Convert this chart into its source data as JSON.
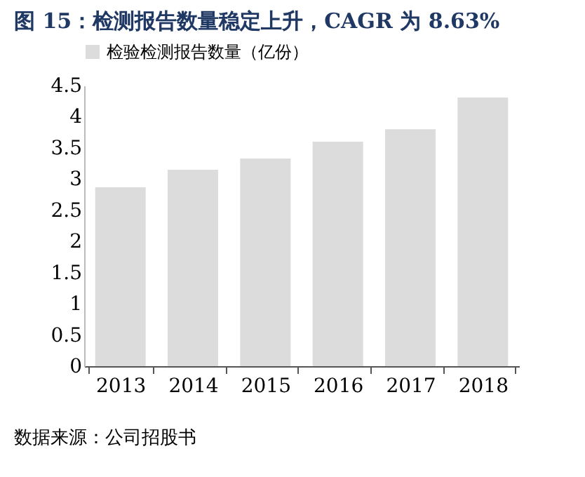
{
  "chart_data": {
    "type": "bar",
    "title": "图 15：检测报告数量稳定上升，CAGR 为 8.63%",
    "categories": [
      "2013",
      "2014",
      "2015",
      "2016",
      "2017",
      "2018"
    ],
    "series": [
      {
        "name": "检验检测报告数量（亿份）",
        "color": "#dcdcdc",
        "values": [
          2.87,
          3.15,
          3.33,
          3.6,
          3.8,
          4.31
        ]
      }
    ],
    "ylim": [
      0,
      4.5
    ],
    "yticks": [
      0,
      0.5,
      1,
      1.5,
      2,
      2.5,
      3,
      3.5,
      4,
      4.5
    ],
    "grid": false,
    "legend": "top",
    "annotations": [
      "数据来源：公司招股书"
    ]
  }
}
